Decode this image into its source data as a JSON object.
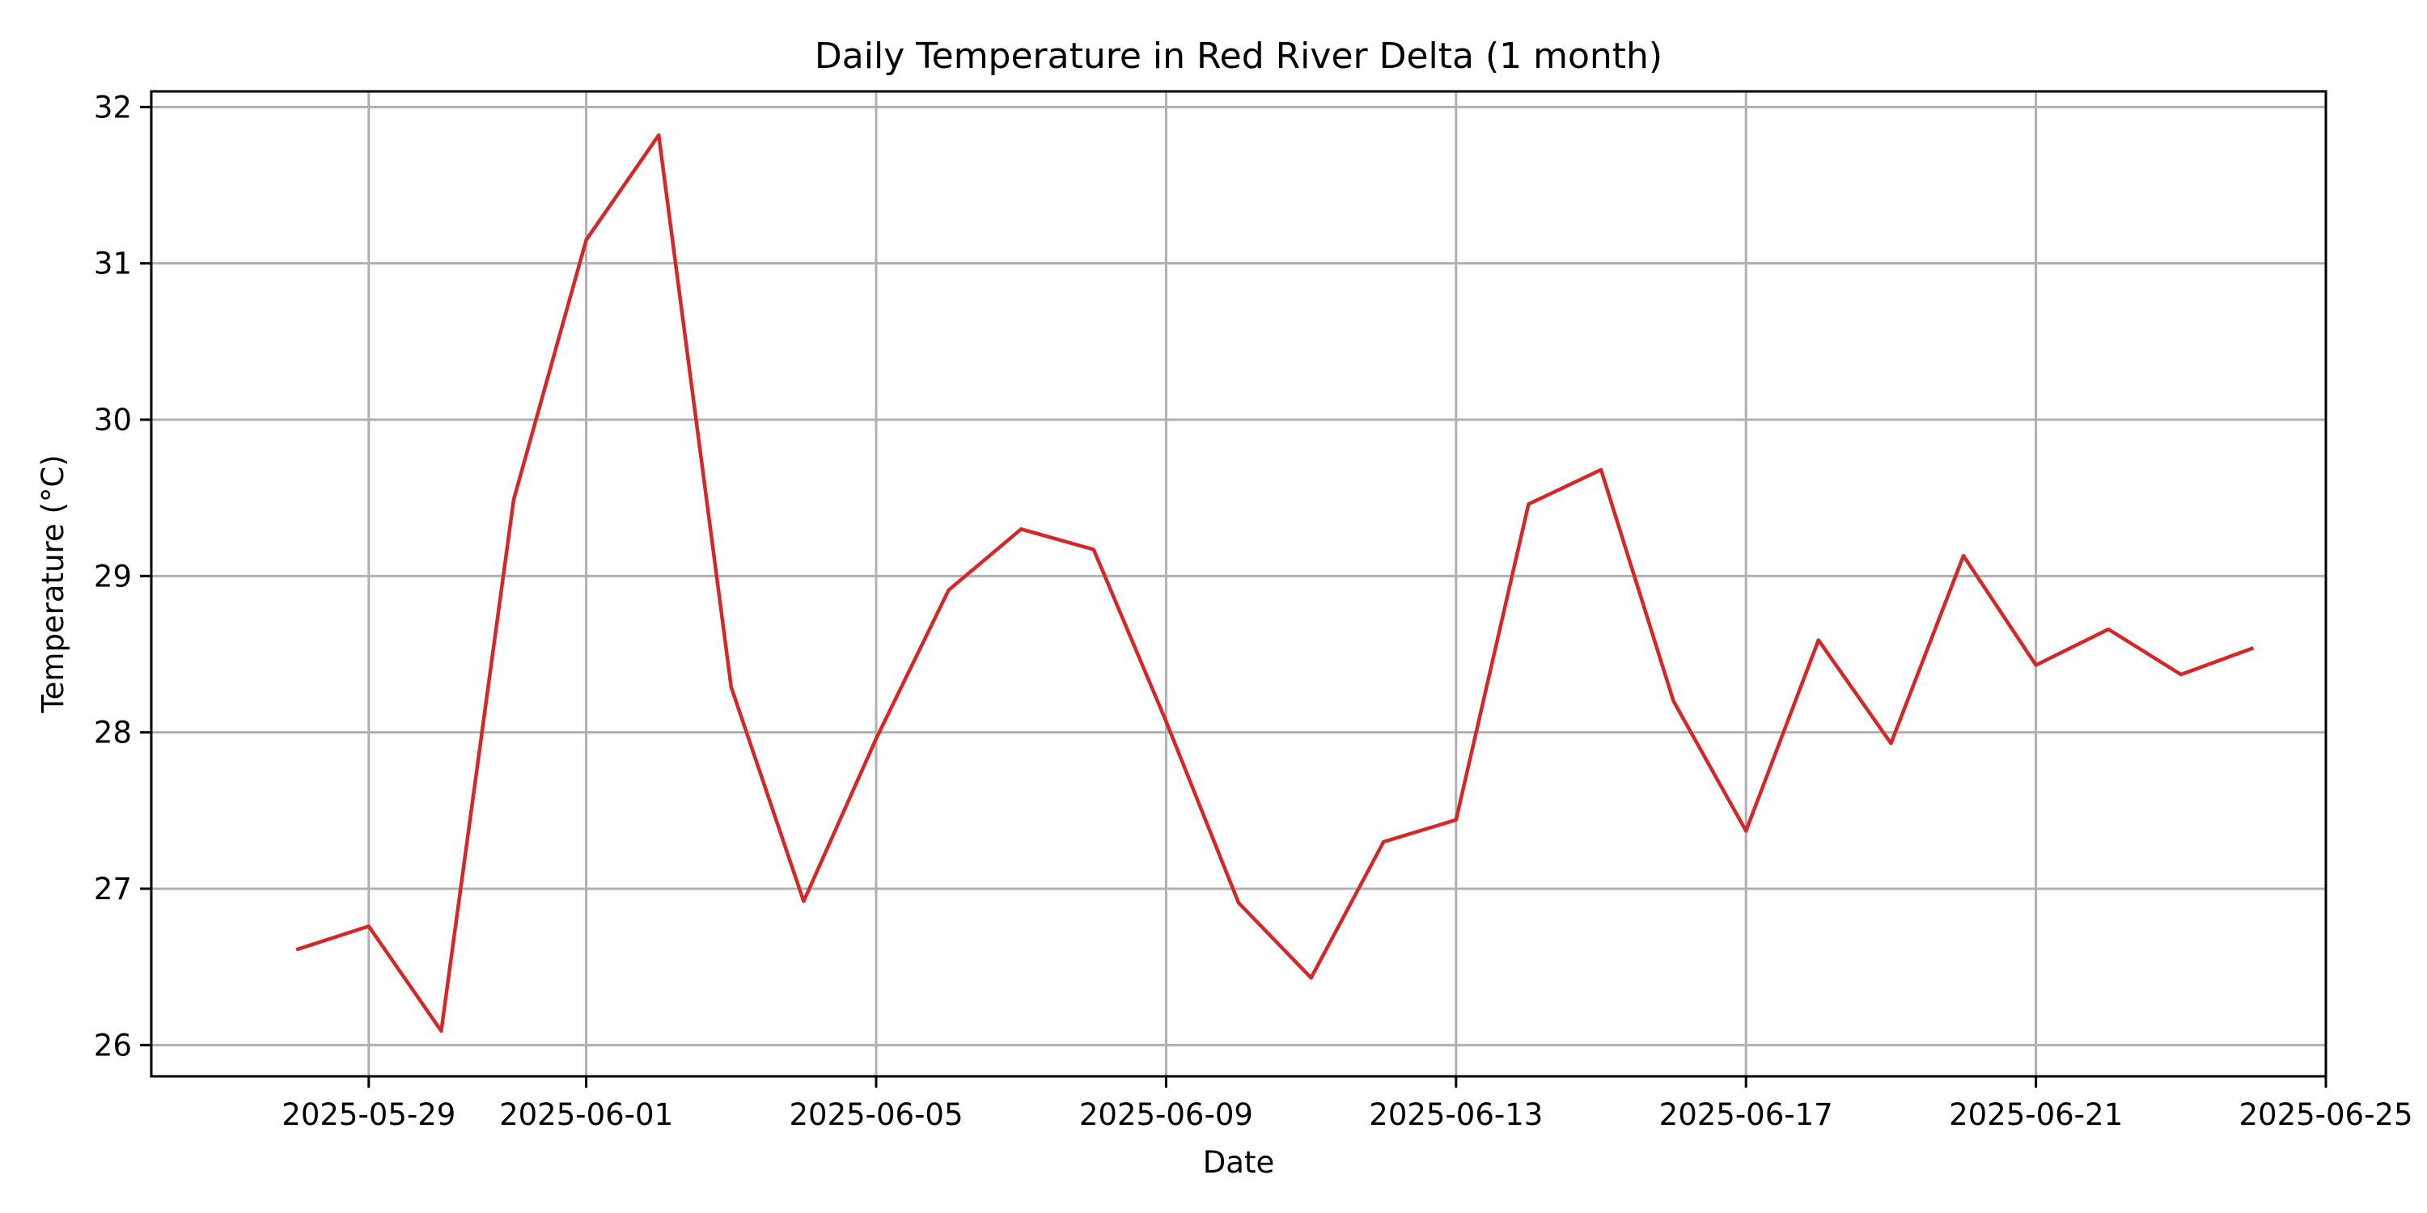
{
  "chart_data": {
    "type": "line",
    "title": "Daily Temperature in Red River Delta (1 month)",
    "xlabel": "Date",
    "ylabel": "Temperature (°C)",
    "x_ticks": [
      "2025-05-29",
      "2025-06-01",
      "2025-06-05",
      "2025-06-09",
      "2025-06-13",
      "2025-06-17",
      "2025-06-21",
      "2025-06-25"
    ],
    "y_ticks": [
      26,
      27,
      28,
      29,
      30,
      31,
      32
    ],
    "xlim": [
      "2025-05-26",
      "2025-06-25"
    ],
    "ylim": [
      25.8,
      32.1
    ],
    "grid": true,
    "series": [
      {
        "color": "#d62728",
        "x": [
          "2025-05-28",
          "2025-05-29",
          "2025-05-30",
          "2025-05-31",
          "2025-06-01",
          "2025-06-02",
          "2025-06-03",
          "2025-06-04",
          "2025-06-05",
          "2025-06-06",
          "2025-06-07",
          "2025-06-08",
          "2025-06-09",
          "2025-06-10",
          "2025-06-11",
          "2025-06-12",
          "2025-06-13",
          "2025-06-14",
          "2025-06-15",
          "2025-06-16",
          "2025-06-17",
          "2025-06-18",
          "2025-06-19",
          "2025-06-20",
          "2025-06-21",
          "2025-06-22",
          "2025-06-23",
          "2025-06-24"
        ],
        "values": [
          26.61,
          26.76,
          26.09,
          29.49,
          31.15,
          31.82,
          28.29,
          26.92,
          27.96,
          28.91,
          29.3,
          29.17,
          28.07,
          26.91,
          26.43,
          27.3,
          27.44,
          29.46,
          29.68,
          28.2,
          27.37,
          28.59,
          27.93,
          29.13,
          28.43,
          28.66,
          28.37,
          28.54
        ]
      }
    ]
  }
}
